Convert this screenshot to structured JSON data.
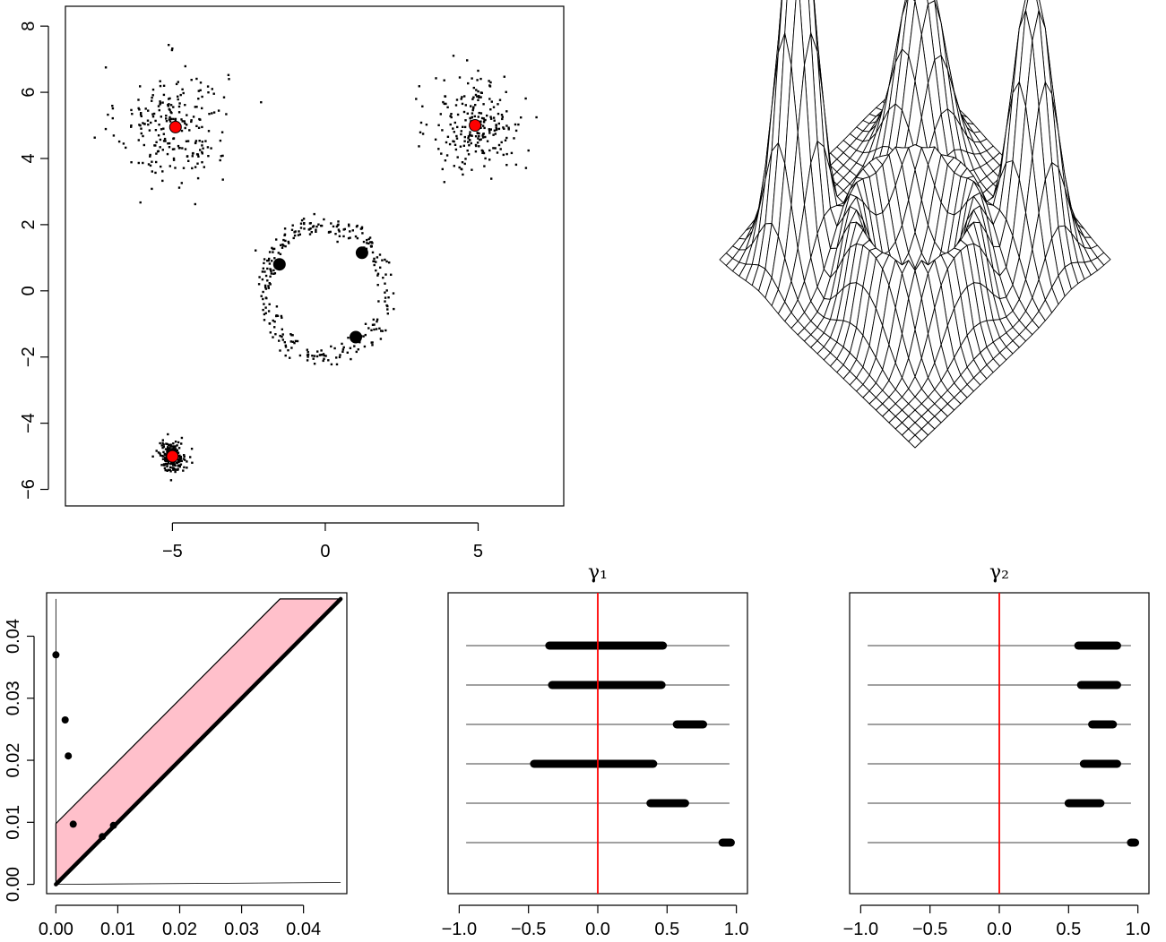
{
  "chart_data": [
    {
      "id": "scatter",
      "type": "scatter",
      "title": "",
      "xlabel": "",
      "ylabel": "",
      "xlim": [
        -8.5,
        7.8
      ],
      "ylim": [
        -6.5,
        8.6
      ],
      "x_ticks": [
        -5,
        0,
        5
      ],
      "x_tick_labels": [
        "−5",
        "0",
        "5"
      ],
      "y_ticks": [
        -6,
        -4,
        -2,
        0,
        2,
        4,
        6,
        8
      ],
      "y_tick_labels": [
        "−6",
        "−4",
        "−2",
        "0",
        "2",
        "4",
        "6",
        "8"
      ],
      "clusters": [
        {
          "shape": "gaussian",
          "center": [
            -5,
            5
          ],
          "spread": 0.9,
          "count": 230
        },
        {
          "shape": "gaussian",
          "center": [
            5,
            5
          ],
          "spread": 0.75,
          "count": 230
        },
        {
          "shape": "gaussian",
          "center": [
            -5,
            -5
          ],
          "spread": 0.22,
          "count": 190
        },
        {
          "shape": "circle",
          "center": [
            0,
            0
          ],
          "radius": 2,
          "noise": 0.15,
          "count": 280
        }
      ],
      "highlight_points": [
        {
          "x": -4.9,
          "y": 4.95,
          "color": "#ff0000"
        },
        {
          "x": 4.9,
          "y": 5.0,
          "color": "#ff0000"
        },
        {
          "x": -5.0,
          "y": -5.0,
          "color": "#ff0000"
        },
        {
          "x": -1.5,
          "y": 0.8,
          "color": "#000000"
        },
        {
          "x": 1.2,
          "y": 1.15,
          "color": "#000000"
        },
        {
          "x": 1.0,
          "y": -1.4,
          "color": "#000000"
        }
      ]
    },
    {
      "id": "surface",
      "type": "surface",
      "title": "",
      "grid_size": 30,
      "peaks": [
        {
          "name": "left",
          "height": 1.0
        },
        {
          "name": "back",
          "height": 0.55
        },
        {
          "name": "right",
          "height": 0.75
        },
        {
          "name": "ring",
          "height": 0.25
        }
      ]
    },
    {
      "id": "persistence",
      "type": "scatter",
      "title": "",
      "xlabel": "",
      "ylabel": "",
      "xlim": [
        -0.0015,
        0.047
      ],
      "ylim": [
        -0.0015,
        0.047
      ],
      "x_ticks": [
        0,
        0.01,
        0.02,
        0.03,
        0.04
      ],
      "x_tick_labels": [
        "0.00",
        "0.01",
        "0.02",
        "0.03",
        "0.04"
      ],
      "y_ticks": [
        0,
        0.01,
        0.02,
        0.03,
        0.04
      ],
      "y_tick_labels": [
        "0.00",
        "0.01",
        "0.02",
        "0.03",
        "0.04"
      ],
      "band_width": 0.0098,
      "band_color": "#ffc0cb",
      "diagonal_max": 0.046,
      "points": [
        {
          "x": 0.0,
          "y": 0.037
        },
        {
          "x": 0.0015,
          "y": 0.0265
        },
        {
          "x": 0.002,
          "y": 0.0207
        },
        {
          "x": 0.0028,
          "y": 0.0097
        },
        {
          "x": 0.0075,
          "y": 0.0077
        },
        {
          "x": 0.0093,
          "y": 0.0095
        }
      ]
    },
    {
      "id": "gamma1",
      "type": "interval",
      "title": "γ₁",
      "xlim": [
        -1.08,
        1.08
      ],
      "x_ticks": [
        -1,
        -0.5,
        0,
        0.5,
        1
      ],
      "x_tick_labels": [
        "−1.0",
        "−0.5",
        "0.0",
        "0.5",
        "1.0"
      ],
      "reference_x": 0,
      "reference_color": "#ff0000",
      "line_range": [
        -0.95,
        0.95
      ],
      "intervals": [
        {
          "lo": -0.35,
          "hi": 0.47
        },
        {
          "lo": -0.33,
          "hi": 0.46
        },
        {
          "lo": 0.57,
          "hi": 0.76
        },
        {
          "lo": -0.46,
          "hi": 0.4
        },
        {
          "lo": 0.38,
          "hi": 0.63
        },
        {
          "lo": 0.9,
          "hi": 0.96
        }
      ]
    },
    {
      "id": "gamma2",
      "type": "interval",
      "title": "γ₂",
      "xlim": [
        -1.08,
        1.08
      ],
      "x_ticks": [
        -1,
        -0.5,
        0,
        0.5,
        1
      ],
      "x_tick_labels": [
        "−1.0",
        "−0.5",
        "0.0",
        "0.5",
        "1.0"
      ],
      "reference_x": 0,
      "reference_color": "#ff0000",
      "line_range": [
        -0.95,
        0.95
      ],
      "intervals": [
        {
          "lo": 0.57,
          "hi": 0.85
        },
        {
          "lo": 0.59,
          "hi": 0.85
        },
        {
          "lo": 0.67,
          "hi": 0.82
        },
        {
          "lo": 0.61,
          "hi": 0.85
        },
        {
          "lo": 0.5,
          "hi": 0.73
        },
        {
          "lo": 0.95,
          "hi": 0.98
        }
      ]
    }
  ]
}
